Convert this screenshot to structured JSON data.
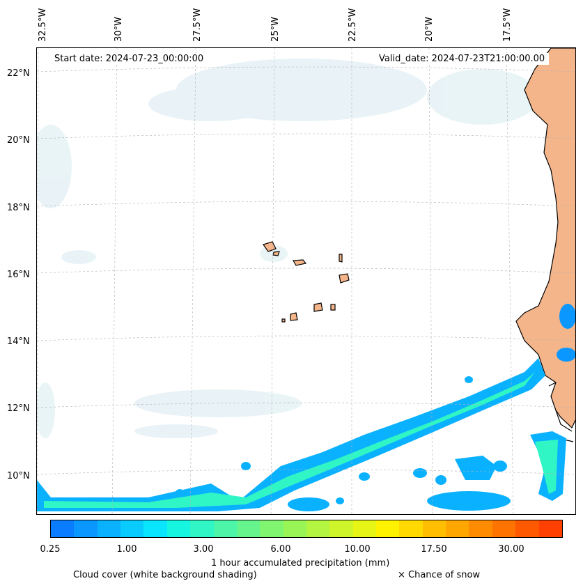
{
  "map": {
    "longitude_labels": [
      "32.5°W",
      "30°W",
      "27.5°W",
      "25°W",
      "22.5°W",
      "20°W",
      "17.5°W"
    ],
    "latitude_labels": [
      "22°N",
      "20°N",
      "18°N",
      "16°N",
      "14°N",
      "12°N",
      "10°N"
    ],
    "start_date": "Start date: 2024-07-23_00:00:00",
    "valid_date": "Valid_date: 2024-07-23T21:00:00.00",
    "land_color": "#f5b58a",
    "coast_color": "#000000"
  },
  "colorbar": {
    "colors": [
      "#0a7cff",
      "#0a97ff",
      "#0ab1ff",
      "#0acbff",
      "#0ae5ff",
      "#16f5e0",
      "#30f5c5",
      "#4cf5a8",
      "#66f58c",
      "#80f570",
      "#99f555",
      "#b3f540",
      "#cdf52a",
      "#e6f516",
      "#fff200",
      "#ffd900",
      "#ffbf00",
      "#ffa600",
      "#ff8c00",
      "#ff7300",
      "#ff5900",
      "#ff4000"
    ],
    "ticks": [
      "0.25",
      "1.00",
      "3.00",
      "6.00",
      "10.00",
      "17.50",
      "30.00"
    ],
    "label": "1 hour accumulated precipitation (mm)"
  },
  "legend": {
    "cloud": "Cloud cover (white background shading)",
    "snow": "× Chance of snow"
  }
}
